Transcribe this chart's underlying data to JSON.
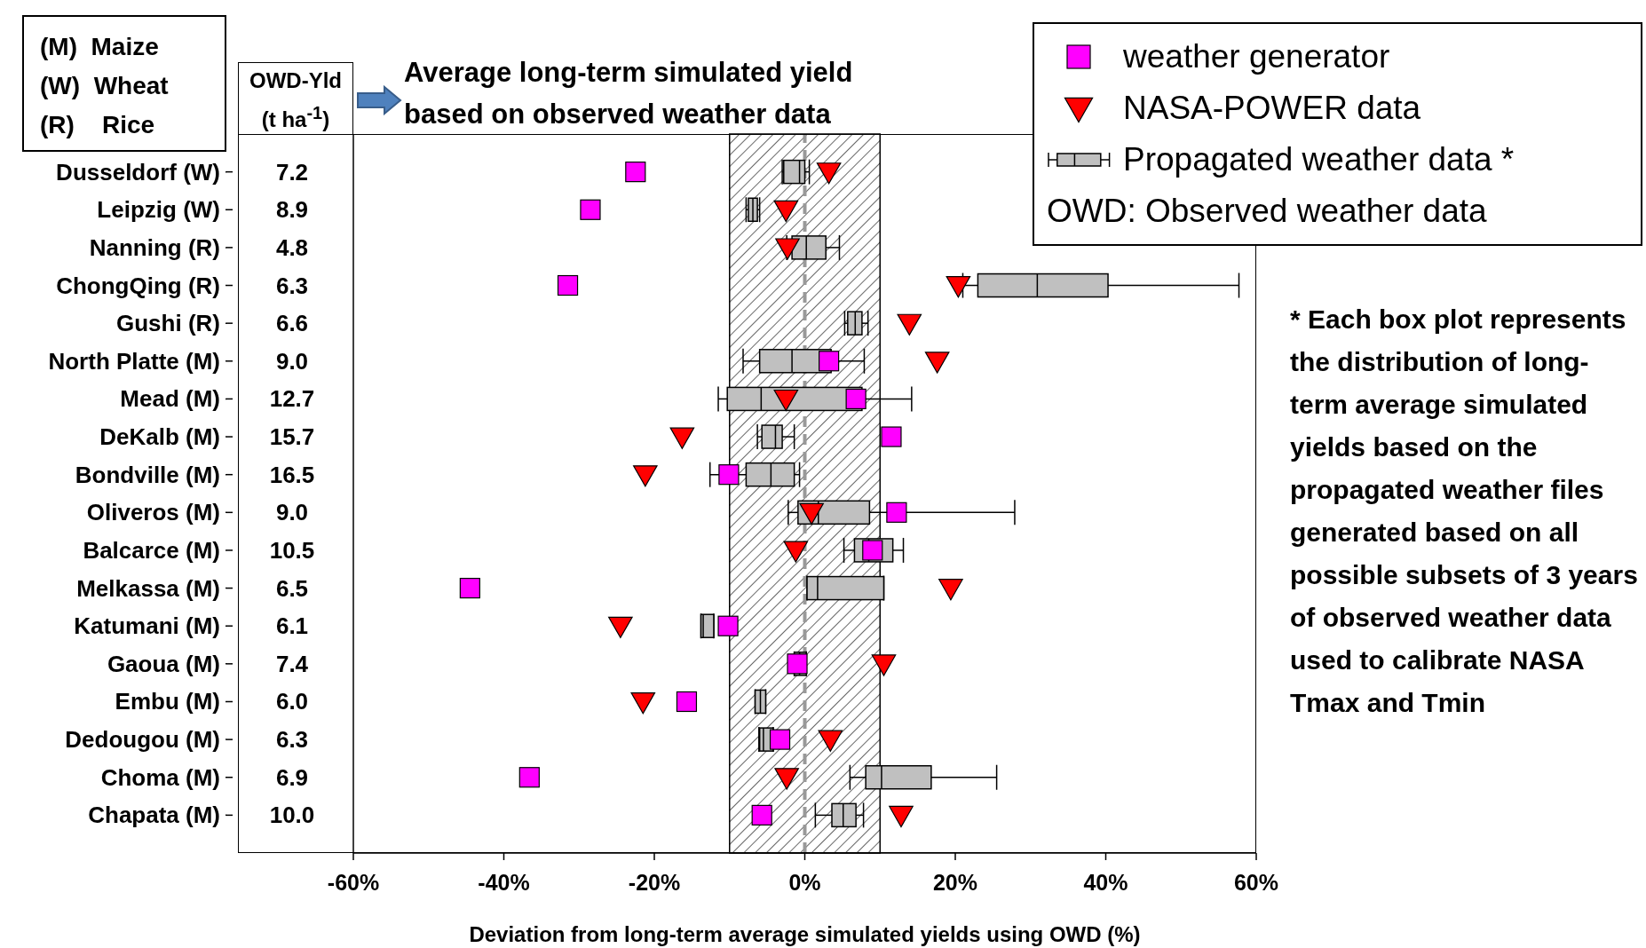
{
  "chart_data": {
    "type": "box",
    "orientation": "horizontal",
    "xlabel": "Deviation from long-term average simulated yields using OWD (%)",
    "categories": [
      "Dusseldorf (W)",
      "Leipzig (W)",
      "Nanning (R)",
      "ChongQing (R)",
      "Gushi (R)",
      "North Platte (M)",
      "Mead (M)",
      "DeKalb (M)",
      "Bondville (M)",
      "Oliveros (M)",
      "Balcarce (M)",
      "Melkassa (M)",
      "Katumani (M)",
      "Gaoua (M)",
      "Embu (M)",
      "Dedougou (M)",
      "Choma (M)",
      "Chapata (M)"
    ],
    "xlim": [
      -60,
      60
    ],
    "xticks": [
      {
        "value": -60,
        "label": "-60%"
      },
      {
        "value": -40,
        "label": "-40%"
      },
      {
        "value": -20,
        "label": "-20%"
      },
      {
        "value": 0,
        "label": "0%"
      },
      {
        "value": 20,
        "label": "20%"
      },
      {
        "value": 40,
        "label": "40%"
      },
      {
        "value": 60,
        "label": "60%"
      }
    ],
    "series": [
      {
        "type": "scatter",
        "name": "weather generator",
        "color": "#ff00ff",
        "marker": "square",
        "values": [
          -22.5,
          -28.5,
          null,
          -31.5,
          null,
          3.2,
          6.8,
          11.5,
          -10.1,
          12.2,
          9.0,
          -44.5,
          -10.2,
          -1.0,
          -15.7,
          -3.3,
          -36.6,
          -5.7
        ]
      },
      {
        "type": "scatter",
        "name": "NASA-POWER data",
        "color": "#ff0000",
        "marker": "triangle",
        "values": [
          3.2,
          -2.5,
          -2.3,
          20.4,
          13.9,
          17.6,
          -2.5,
          -16.3,
          -21.2,
          0.9,
          -1.2,
          19.4,
          -24.5,
          10.5,
          -21.5,
          3.4,
          -2.4,
          12.8
        ]
      },
      {
        "type": "box",
        "name": "Propagated weather data *",
        "color": "#c0c0c0",
        "boxes": [
          {
            "low": -3.0,
            "q1": -2.8,
            "median": -0.7,
            "q3": 0,
            "high": 0.6
          },
          {
            "low": -7.8,
            "q1": -7.5,
            "median": -6.9,
            "q3": -6.3,
            "high": -6.0
          },
          {
            "low": -2.4,
            "q1": -1.7,
            "median": 0.2,
            "q3": 2.8,
            "high": 4.6
          },
          {
            "low": 21.0,
            "q1": 23.0,
            "median": 30.9,
            "q3": 40.3,
            "high": 57.7
          },
          {
            "low": 5.3,
            "q1": 5.7,
            "median": 6.7,
            "q3": 7.6,
            "high": 8.4
          },
          {
            "low": -8.2,
            "q1": -6.0,
            "median": -1.7,
            "q3": 3.5,
            "high": 7.9
          },
          {
            "low": -11.5,
            "q1": -10.3,
            "median": -5.8,
            "q3": 7.6,
            "high": 14.2
          },
          {
            "low": -6.3,
            "q1": -5.7,
            "median": -3.9,
            "q3": -3.0,
            "high": -1.4
          },
          {
            "low": -12.6,
            "q1": -7.8,
            "median": -4.5,
            "q3": -1.4,
            "high": -0.7
          },
          {
            "low": -2.2,
            "q1": -0.9,
            "median": 1.8,
            "q3": 8.6,
            "high": 27.9
          },
          {
            "low": 5.2,
            "q1": 6.6,
            "median": 8.5,
            "q3": 11.7,
            "high": 13.1
          },
          {
            "low": 0.3,
            "q1": 0.3,
            "median": 1.7,
            "q3": 10.5,
            "high": 10.5
          },
          {
            "low": -13.8,
            "q1": -13.8,
            "median": -13.5,
            "q3": -12.1,
            "high": -12.1
          },
          {
            "low": -1.4,
            "q1": -1.4,
            "median": -0.7,
            "q3": 0.2,
            "high": 0.2
          },
          {
            "low": -6.6,
            "q1": -6.6,
            "median": -5.9,
            "q3": -5.2,
            "high": -5.2
          },
          {
            "low": -6.1,
            "q1": -6.0,
            "median": -5.5,
            "q3": -4.2,
            "high": -4.2
          },
          {
            "low": 6.0,
            "q1": 8.1,
            "median": 10.2,
            "q3": 16.8,
            "high": 25.5
          },
          {
            "low": 1.4,
            "q1": 3.6,
            "median": 5.1,
            "q3": 6.8,
            "high": 7.8
          }
        ]
      }
    ],
    "bands": [
      {
        "axis": "x",
        "from": -10,
        "to": 10
      }
    ],
    "ref_lines": [
      {
        "axis": "x",
        "value": 0,
        "color": "#999999",
        "line_style": "dashed"
      }
    ],
    "legend": "top right",
    "grid": false,
    "annotations": [
      "(M)  Maize",
      "(W)  Wheat",
      "(R)    Rice",
      "OWD-Yld (t ha$^{-1}$)",
      "Average long-term simulated yield based on observed weather data",
      "OWD: Observed weather data",
      "* Each box plot represents the distribution of long-term average simulated yields based on the propagated weather files generated based on all possible subsets of 3 years of observed weather data used to calibrate NASA Tmax and Tmin",
      "7.2",
      "8.9",
      "4.8",
      "6.3",
      "6.6",
      "9.0",
      "12.7",
      "15.7",
      "16.5",
      "9.0",
      "10.5",
      "6.5",
      "6.1",
      "7.4",
      "6.0",
      "6.3",
      "6.9",
      "10.0"
    ]
  }
}
